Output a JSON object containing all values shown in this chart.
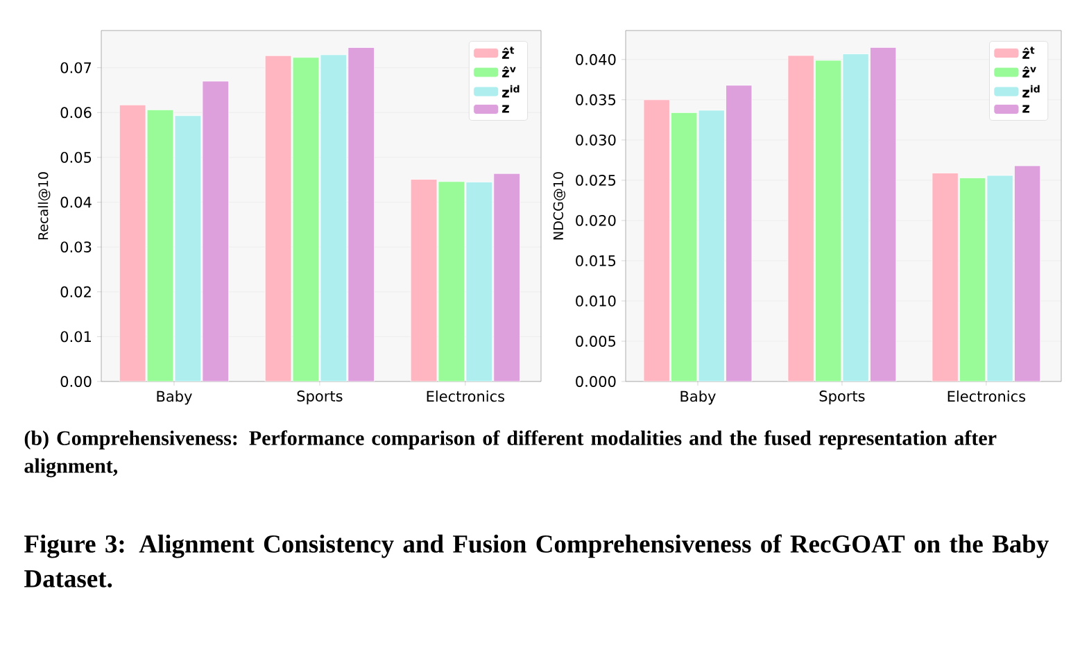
{
  "chart_data": [
    {
      "type": "bar",
      "ylabel": "Recall@10",
      "categories": [
        "Baby",
        "Sports",
        "Electronics"
      ],
      "series": [
        {
          "name": "ẑ$^{t}$",
          "color": "#ffb6c1",
          "values": [
            0.0617,
            0.0727,
            0.0451
          ]
        },
        {
          "name": "ẑ$^{v}$",
          "color": "#98fb98",
          "values": [
            0.0606,
            0.0723,
            0.0446
          ]
        },
        {
          "name": "z$^{id}$",
          "color": "#afeeee",
          "values": [
            0.0593,
            0.0729,
            0.0445
          ]
        },
        {
          "name": "z",
          "color": "#dda0dd",
          "values": [
            0.067,
            0.0745,
            0.0464
          ]
        }
      ],
      "ylim": [
        0,
        0.0783
      ],
      "yticks": [
        {
          "value": 0,
          "label": "0.00"
        },
        {
          "value": 0.01,
          "label": "0.01"
        },
        {
          "value": 0.02,
          "label": "0.02"
        },
        {
          "value": 0.03,
          "label": "0.03"
        },
        {
          "value": 0.04,
          "label": "0.04"
        },
        {
          "value": 0.05,
          "label": "0.05"
        },
        {
          "value": 0.06,
          "label": "0.06"
        },
        {
          "value": 0.07,
          "label": "0.07"
        }
      ],
      "grid": "y",
      "legend": "top right",
      "annotations": [
        "(b) Comprehensiveness: Performance comparison of different modalities and the fused representation after alignment,",
        "Figure 3: Alignment Consistency and Fusion Comprehensiveness of RecGOAT on the Baby Dataset."
      ]
    },
    {
      "type": "bar",
      "ylabel": "NDCG@10",
      "categories": [
        "Baby",
        "Sports",
        "Electronics"
      ],
      "series": [
        {
          "name": "ẑ$^{t}$",
          "color": "#ffb6c1",
          "values": [
            0.035,
            0.0405,
            0.0259
          ]
        },
        {
          "name": "ẑ$^{v}$",
          "color": "#98fb98",
          "values": [
            0.0334,
            0.0399,
            0.0253
          ]
        },
        {
          "name": "z$^{id}$",
          "color": "#afeeee",
          "values": [
            0.0337,
            0.0407,
            0.0256
          ]
        },
        {
          "name": "z",
          "color": "#dda0dd",
          "values": [
            0.0368,
            0.0415,
            0.0268
          ]
        }
      ],
      "ylim": [
        0,
        0.0436
      ],
      "yticks": [
        {
          "value": 0,
          "label": "0.000"
        },
        {
          "value": 0.005,
          "label": "0.005"
        },
        {
          "value": 0.01,
          "label": "0.010"
        },
        {
          "value": 0.015,
          "label": "0.015"
        },
        {
          "value": 0.02,
          "label": "0.020"
        },
        {
          "value": 0.025,
          "label": "0.025"
        },
        {
          "value": 0.03,
          "label": "0.030"
        },
        {
          "value": 0.035,
          "label": "0.035"
        },
        {
          "value": 0.04,
          "label": "0.040"
        }
      ],
      "grid": "y",
      "legend": "top right"
    }
  ]
}
